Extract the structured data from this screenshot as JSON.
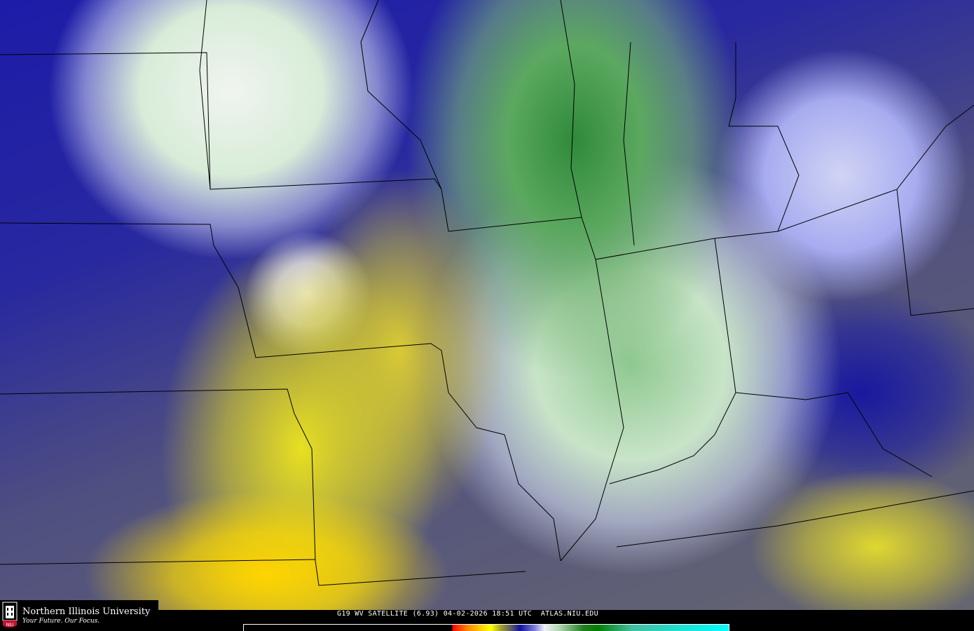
{
  "map": {
    "product": "GOES-19 water vapor satellite imagery",
    "caption": "G19 WV SATELLITE (6.93) 04-02-2026 18:51 UTC  ATLAS.NIU.EDU",
    "colorbar_colors": [
      "#000000",
      "#ff0000",
      "#ff8000",
      "#ffff00",
      "#606060",
      "#1010a0",
      "#f0f0f8",
      "#008000",
      "#00ffff"
    ]
  },
  "logo": {
    "name": "Northern Illinois University",
    "tagline": "Your Future. Our Focus.",
    "mark": "NIU",
    "color": "#c8102e"
  }
}
